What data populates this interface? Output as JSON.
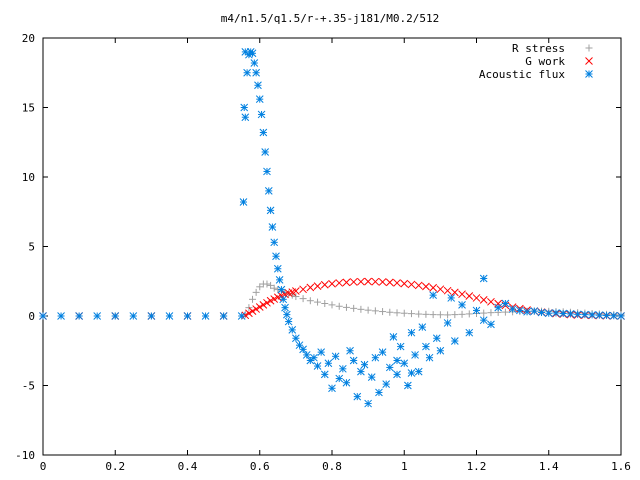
{
  "chart_data": {
    "type": "scatter",
    "title": "m4/n1.5/q1.5/r-+.35-j181/M0.2/512",
    "xlabel": "",
    "ylabel": "",
    "xlim": [
      0,
      1.6
    ],
    "ylim": [
      -10,
      20
    ],
    "xticks": [
      0,
      0.2,
      0.4,
      0.6,
      0.8,
      1,
      1.2,
      1.4,
      1.6
    ],
    "xtick_labels": [
      "0",
      "0.2",
      "0.4",
      "0.6",
      "0.8",
      "1",
      "1.2",
      "1.4",
      "1.6"
    ],
    "yticks": [
      -10,
      -5,
      0,
      5,
      10,
      15,
      20
    ],
    "ytick_labels": [
      "-10",
      "-5",
      "0",
      "5",
      "10",
      "15",
      "20"
    ],
    "grid": false,
    "legend_position": "top-right",
    "series": [
      {
        "name": "R stress",
        "marker": "plus",
        "color": "#a0a0a0",
        "x": [
          0.0,
          0.1,
          0.2,
          0.3,
          0.4,
          0.5,
          0.56,
          0.57,
          0.58,
          0.59,
          0.6,
          0.61,
          0.62,
          0.63,
          0.64,
          0.65,
          0.66,
          0.67,
          0.68,
          0.69,
          0.7,
          0.72,
          0.74,
          0.76,
          0.78,
          0.8,
          0.82,
          0.84,
          0.86,
          0.88,
          0.9,
          0.92,
          0.94,
          0.96,
          0.98,
          1.0,
          1.02,
          1.04,
          1.06,
          1.08,
          1.1,
          1.12,
          1.14,
          1.16,
          1.18,
          1.2,
          1.22,
          1.24,
          1.26,
          1.28,
          1.3,
          1.32,
          1.34,
          1.36,
          1.38,
          1.4,
          1.42,
          1.44,
          1.46,
          1.48,
          1.5,
          1.52,
          1.54,
          1.56,
          1.58,
          1.6
        ],
        "y": [
          0.0,
          0.0,
          0.0,
          0.0,
          0.0,
          0.0,
          0.1,
          0.6,
          1.2,
          1.7,
          2.1,
          2.3,
          2.3,
          2.2,
          2.0,
          1.9,
          1.8,
          1.7,
          1.6,
          1.5,
          1.4,
          1.25,
          1.1,
          1.0,
          0.9,
          0.8,
          0.7,
          0.62,
          0.55,
          0.48,
          0.42,
          0.37,
          0.32,
          0.27,
          0.23,
          0.2,
          0.17,
          0.14,
          0.12,
          0.1,
          0.09,
          0.08,
          0.1,
          0.12,
          0.15,
          0.18,
          0.21,
          0.24,
          0.26,
          0.28,
          0.3,
          0.32,
          0.34,
          0.35,
          0.35,
          0.34,
          0.32,
          0.3,
          0.27,
          0.24,
          0.21,
          0.18,
          0.15,
          0.12,
          0.1,
          0.08
        ]
      },
      {
        "name": "G work",
        "marker": "cross",
        "color": "#ff0000",
        "x": [
          0.0,
          0.1,
          0.2,
          0.3,
          0.4,
          0.5,
          0.56,
          0.57,
          0.58,
          0.59,
          0.6,
          0.61,
          0.62,
          0.63,
          0.64,
          0.65,
          0.66,
          0.67,
          0.68,
          0.69,
          0.7,
          0.72,
          0.74,
          0.76,
          0.78,
          0.8,
          0.82,
          0.84,
          0.86,
          0.88,
          0.9,
          0.92,
          0.94,
          0.96,
          0.98,
          1.0,
          1.02,
          1.04,
          1.06,
          1.08,
          1.1,
          1.12,
          1.14,
          1.16,
          1.18,
          1.2,
          1.22,
          1.24,
          1.26,
          1.28,
          1.3,
          1.32,
          1.34,
          1.36,
          1.38,
          1.4,
          1.42,
          1.44,
          1.46,
          1.48,
          1.5,
          1.52,
          1.54,
          1.56,
          1.58,
          1.6
        ],
        "y": [
          0.0,
          0.0,
          0.0,
          0.0,
          0.0,
          0.0,
          0.05,
          0.2,
          0.35,
          0.5,
          0.65,
          0.8,
          0.95,
          1.1,
          1.22,
          1.35,
          1.45,
          1.55,
          1.65,
          1.72,
          1.8,
          1.92,
          2.05,
          2.15,
          2.25,
          2.32,
          2.38,
          2.42,
          2.45,
          2.47,
          2.48,
          2.47,
          2.45,
          2.42,
          2.38,
          2.33,
          2.27,
          2.2,
          2.12,
          2.03,
          1.93,
          1.82,
          1.7,
          1.57,
          1.44,
          1.3,
          1.16,
          1.02,
          0.89,
          0.76,
          0.64,
          0.53,
          0.43,
          0.35,
          0.28,
          0.22,
          0.17,
          0.13,
          0.1,
          0.07,
          0.05,
          0.04,
          0.03,
          0.02,
          0.01,
          0.0
        ]
      },
      {
        "name": "Acoustic flux",
        "marker": "star",
        "color": "#0080e0",
        "x": [
          0.0,
          0.05,
          0.1,
          0.15,
          0.2,
          0.25,
          0.3,
          0.35,
          0.4,
          0.45,
          0.5,
          0.55,
          0.56,
          0.565,
          0.57,
          0.575,
          0.58,
          0.585,
          0.59,
          0.595,
          0.6,
          0.605,
          0.61,
          0.615,
          0.62,
          0.625,
          0.63,
          0.635,
          0.64,
          0.645,
          0.65,
          0.655,
          0.66,
          0.665,
          0.67,
          0.675,
          0.68,
          0.69,
          0.7,
          0.71,
          0.72,
          0.73,
          0.74,
          0.75,
          0.76,
          0.77,
          0.78,
          0.79,
          0.8,
          0.81,
          0.82,
          0.83,
          0.84,
          0.85,
          0.86,
          0.87,
          0.88,
          0.89,
          0.9,
          0.91,
          0.92,
          0.93,
          0.94,
          0.95,
          0.96,
          0.97,
          0.98,
          0.99,
          1.0,
          1.01,
          1.02,
          1.03,
          1.04,
          1.05,
          1.06,
          1.07,
          1.08,
          1.09,
          1.1,
          1.12,
          1.14,
          1.16,
          1.18,
          1.2,
          1.22,
          1.24,
          1.26,
          1.28,
          1.3,
          1.32,
          1.34,
          1.36,
          1.38,
          1.4,
          1.42,
          1.44,
          1.46,
          1.48,
          1.5,
          1.52,
          1.54,
          1.56,
          1.58,
          1.6,
          0.555,
          0.557,
          0.56,
          0.98,
          1.02,
          1.13,
          1.22
        ],
        "y": [
          0.0,
          0.0,
          0.0,
          0.0,
          0.0,
          0.0,
          0.0,
          0.0,
          0.0,
          0.0,
          0.0,
          0.0,
          14.3,
          17.5,
          18.8,
          19.0,
          18.9,
          18.2,
          17.5,
          16.6,
          15.6,
          14.5,
          13.2,
          11.8,
          10.4,
          9.0,
          7.6,
          6.4,
          5.3,
          4.3,
          3.4,
          2.6,
          1.9,
          1.2,
          0.6,
          0.1,
          -0.4,
          -1.0,
          -1.6,
          -2.1,
          -2.4,
          -2.8,
          -3.2,
          -3.0,
          -3.6,
          -2.6,
          -4.2,
          -3.4,
          -5.2,
          -2.9,
          -4.5,
          -3.8,
          -4.8,
          -2.5,
          -3.2,
          -5.8,
          -4.0,
          -3.5,
          -6.3,
          -4.4,
          -3.0,
          -5.5,
          -2.6,
          -4.9,
          -3.7,
          -1.5,
          -4.2,
          -2.2,
          -3.4,
          -5.0,
          -1.2,
          -2.8,
          -4.0,
          -0.8,
          -2.2,
          -3.0,
          1.5,
          -1.6,
          -2.5,
          -0.5,
          -1.8,
          0.8,
          -1.2,
          0.4,
          -0.3,
          -0.6,
          0.6,
          0.9,
          0.5,
          0.4,
          0.3,
          0.35,
          0.25,
          0.2,
          0.22,
          0.18,
          0.15,
          0.12,
          0.1,
          0.08,
          0.06,
          0.04,
          0.02,
          0.0,
          8.2,
          15.0,
          19.0,
          -3.2,
          -4.1,
          1.3,
          2.7
        ]
      }
    ]
  }
}
